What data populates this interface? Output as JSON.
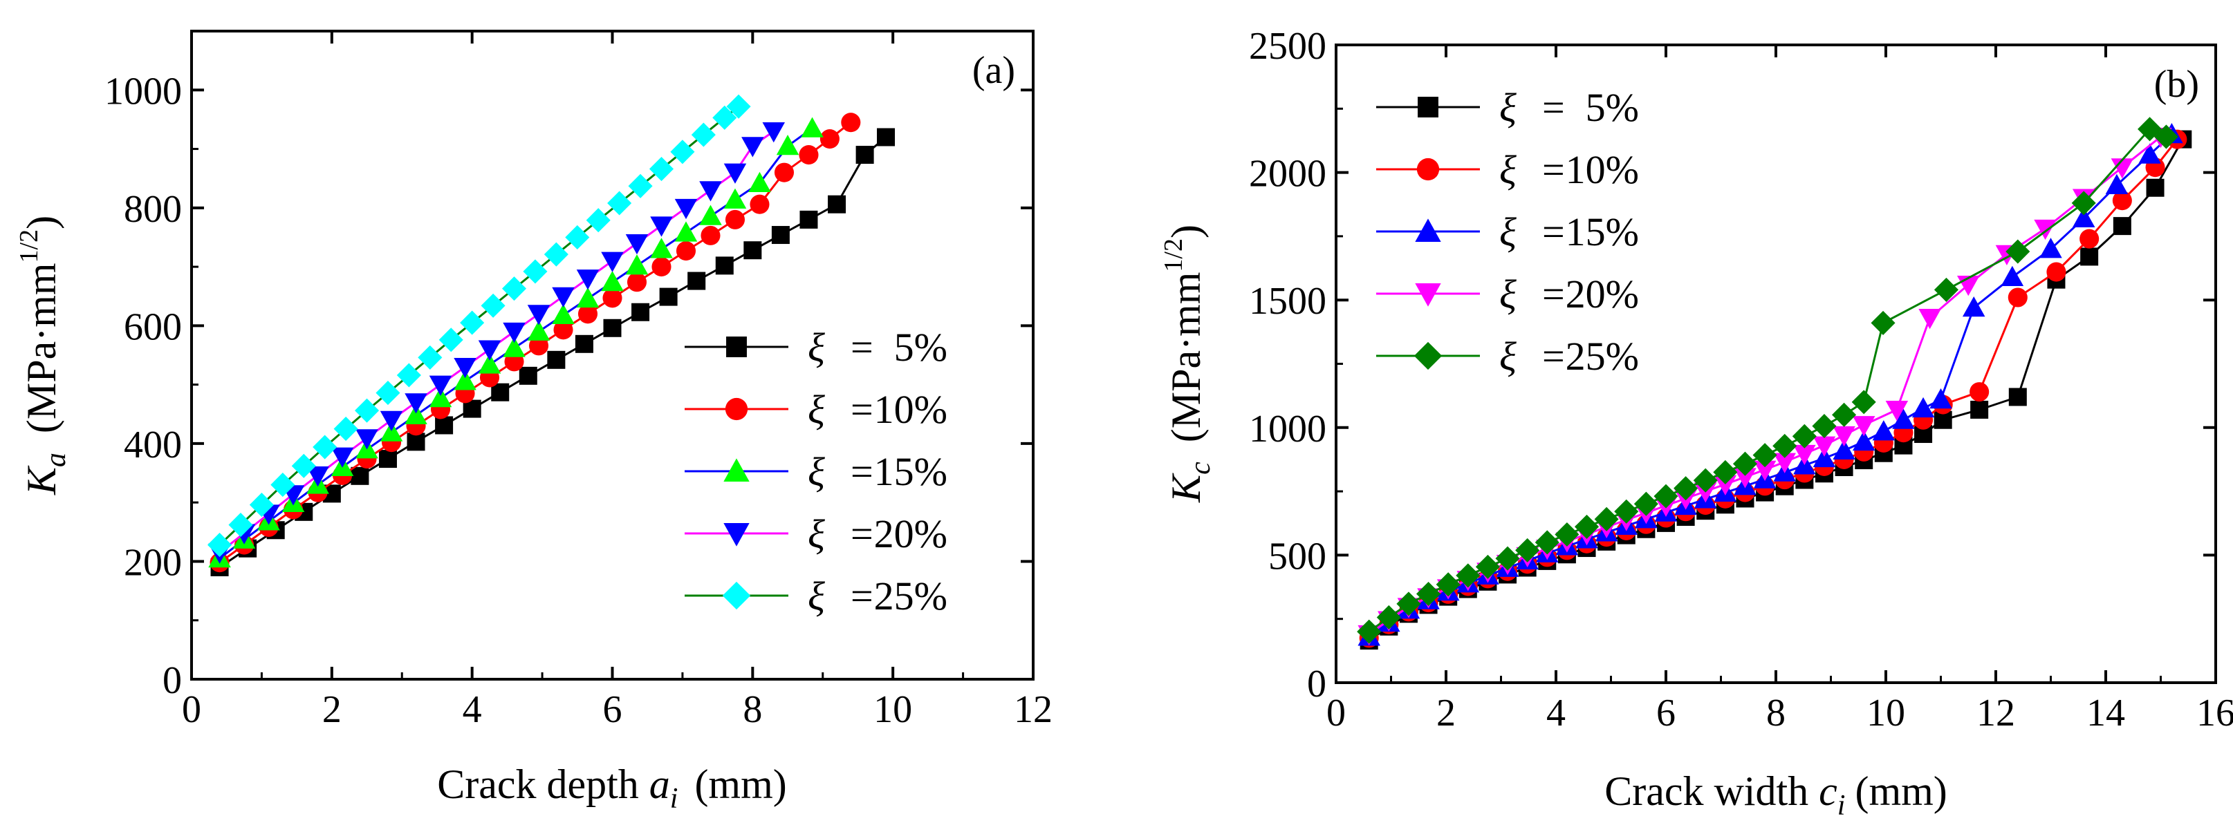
{
  "chart_data": [
    {
      "type": "line",
      "panel_label": "(a)",
      "xlabel": {
        "text": "Crack depth ",
        "var": "a",
        "sub": "i",
        "unit": "(mm)"
      },
      "ylabel": {
        "var": "K",
        "sub": "a",
        "unit": "(MPa·mm",
        "sup": "1/2",
        "close": ")"
      },
      "xlim": [
        0,
        12
      ],
      "ylim": [
        0,
        1100
      ],
      "xticks": [
        0,
        2,
        4,
        6,
        8,
        10,
        12
      ],
      "yticks": [
        0,
        200,
        400,
        600,
        800,
        1000
      ],
      "legend_position": "bottom-right",
      "series": [
        {
          "name": "ξ =  5%",
          "greek": "ξ",
          "pct": "5%",
          "marker": "square",
          "line_color": "#000000",
          "marker_color": "#000000",
          "x": [
            0.4,
            0.8,
            1.2,
            1.6,
            2.0,
            2.4,
            2.8,
            3.2,
            3.6,
            4.0,
            4.4,
            4.8,
            5.2,
            5.6,
            6.0,
            6.4,
            6.8,
            7.2,
            7.6,
            8.0,
            8.4,
            8.8,
            9.2,
            9.6,
            9.9
          ],
          "y": [
            190,
            222,
            253,
            284,
            315,
            345,
            374,
            403,
            431,
            459,
            487,
            515,
            542,
            569,
            596,
            623,
            649,
            676,
            702,
            728,
            754,
            780,
            806,
            890,
            920
          ]
        },
        {
          "name": "ξ =  10%",
          "greek": "ξ",
          "pct": "10%",
          "marker": "circle",
          "line_color": "#ff0000",
          "marker_color": "#ff0000",
          "x": [
            0.4,
            0.75,
            1.1,
            1.45,
            1.8,
            2.15,
            2.5,
            2.85,
            3.2,
            3.55,
            3.9,
            4.25,
            4.6,
            4.95,
            5.3,
            5.65,
            6.0,
            6.35,
            6.7,
            7.05,
            7.4,
            7.75,
            8.1,
            8.45,
            8.8,
            9.1,
            9.4
          ],
          "y": [
            198,
            228,
            258,
            288,
            317,
            346,
            374,
            402,
            430,
            458,
            485,
            512,
            539,
            566,
            593,
            620,
            647,
            674,
            700,
            727,
            753,
            780,
            806,
            860,
            890,
            917,
            945
          ]
        },
        {
          "name": "ξ =  15%",
          "greek": "ξ",
          "pct": "15%",
          "marker": "triangle-up",
          "line_color": "#0000ff",
          "marker_color": "#00ff00",
          "x": [
            0.4,
            0.75,
            1.1,
            1.45,
            1.8,
            2.15,
            2.5,
            2.85,
            3.2,
            3.55,
            3.9,
            4.25,
            4.6,
            4.95,
            5.3,
            5.65,
            6.0,
            6.35,
            6.7,
            7.05,
            7.4,
            7.75,
            8.1,
            8.5,
            8.85
          ],
          "y": [
            205,
            237,
            268,
            299,
            330,
            360,
            390,
            419,
            448,
            477,
            506,
            534,
            562,
            590,
            618,
            646,
            674,
            702,
            730,
            758,
            786,
            814,
            842,
            905,
            935
          ]
        },
        {
          "name": "ξ =  20%",
          "greek": "ξ",
          "pct": "20%",
          "marker": "triangle-down",
          "line_color": "#ff00ff",
          "marker_color": "#0000ff",
          "x": [
            0.4,
            0.75,
            1.1,
            1.45,
            1.8,
            2.15,
            2.5,
            2.85,
            3.2,
            3.55,
            3.9,
            4.25,
            4.6,
            4.95,
            5.3,
            5.65,
            6.0,
            6.35,
            6.7,
            7.05,
            7.4,
            7.75,
            8.0,
            8.3
          ],
          "y": [
            215,
            248,
            281,
            314,
            346,
            378,
            409,
            440,
            470,
            500,
            530,
            560,
            590,
            620,
            650,
            680,
            710,
            740,
            770,
            800,
            830,
            860,
            905,
            930
          ]
        },
        {
          "name": "ξ =  25%",
          "greek": "ξ",
          "pct": "25%",
          "marker": "diamond",
          "line_color": "#008000",
          "marker_color": "#00ffff",
          "x": [
            0.4,
            0.7,
            1.0,
            1.3,
            1.6,
            1.9,
            2.2,
            2.5,
            2.8,
            3.1,
            3.4,
            3.7,
            4.0,
            4.3,
            4.6,
            4.9,
            5.2,
            5.5,
            5.8,
            6.1,
            6.4,
            6.7,
            7.0,
            7.3,
            7.6,
            7.8
          ],
          "y": [
            228,
            262,
            296,
            330,
            362,
            394,
            425,
            456,
            486,
            516,
            546,
            576,
            605,
            634,
            663,
            692,
            721,
            750,
            779,
            808,
            837,
            866,
            895,
            924,
            953,
            972
          ]
        }
      ]
    },
    {
      "type": "line",
      "panel_label": "(b)",
      "xlabel": {
        "text": "Crack width ",
        "var": "c",
        "sub": "i",
        "unit": "(mm)"
      },
      "ylabel": {
        "var": "K",
        "sub": "c",
        "unit": "(MPa·mm",
        "sup": "1/2",
        "close": ")"
      },
      "xlim": [
        0,
        16
      ],
      "ylim": [
        0,
        2500
      ],
      "xticks": [
        0,
        2,
        4,
        6,
        8,
        10,
        12,
        14,
        16
      ],
      "yticks": [
        0,
        500,
        1000,
        1500,
        2000,
        2500
      ],
      "legend_position": "top-left",
      "series": [
        {
          "name": "ξ =  5%",
          "greek": "ξ",
          "pct": "5%",
          "marker": "square",
          "line_color": "#000000",
          "marker_color": "#000000",
          "x": [
            0.6,
            0.96,
            1.32,
            1.68,
            2.04,
            2.4,
            2.76,
            3.12,
            3.48,
            3.84,
            4.2,
            4.56,
            4.92,
            5.28,
            5.64,
            6.0,
            6.36,
            6.72,
            7.08,
            7.44,
            7.8,
            8.16,
            8.52,
            8.88,
            9.24,
            9.6,
            9.96,
            10.32,
            10.68,
            11.04,
            11.7,
            12.4,
            13.1,
            13.7,
            14.3,
            14.9,
            15.4
          ],
          "y": [
            165,
            220,
            270,
            305,
            337,
            367,
            396,
            424,
            451,
            477,
            503,
            528,
            553,
            578,
            602,
            626,
            650,
            674,
            698,
            722,
            746,
            770,
            795,
            820,
            845,
            872,
            900,
            930,
            975,
            1030,
            1070,
            1120,
            1580,
            1670,
            1790,
            1940,
            2130
          ]
        },
        {
          "name": "ξ =  10%",
          "greek": "ξ",
          "pct": "10%",
          "marker": "circle",
          "line_color": "#ff0000",
          "marker_color": "#ff0000",
          "x": [
            0.6,
            0.96,
            1.32,
            1.68,
            2.04,
            2.4,
            2.76,
            3.12,
            3.48,
            3.84,
            4.2,
            4.56,
            4.92,
            5.28,
            5.64,
            6.0,
            6.36,
            6.72,
            7.08,
            7.44,
            7.8,
            8.16,
            8.52,
            8.88,
            9.24,
            9.6,
            9.96,
            10.32,
            10.68,
            11.04,
            11.7,
            12.4,
            13.1,
            13.7,
            14.3,
            14.9,
            15.3
          ],
          "y": [
            175,
            228,
            278,
            314,
            347,
            378,
            408,
            437,
            465,
            492,
            519,
            545,
            571,
            596,
            621,
            646,
            671,
            696,
            721,
            746,
            771,
            796,
            822,
            848,
            875,
            905,
            940,
            980,
            1030,
            1090,
            1140,
            1510,
            1610,
            1740,
            1890,
            2020,
            2130
          ]
        },
        {
          "name": "ξ =  15%",
          "greek": "ξ",
          "pct": "15%",
          "marker": "triangle-up",
          "line_color": "#0000ff",
          "marker_color": "#0000ff",
          "x": [
            0.6,
            0.96,
            1.32,
            1.68,
            2.04,
            2.4,
            2.76,
            3.12,
            3.48,
            3.84,
            4.2,
            4.56,
            4.92,
            5.28,
            5.64,
            6.0,
            6.36,
            6.72,
            7.08,
            7.44,
            7.8,
            8.16,
            8.52,
            8.88,
            9.24,
            9.6,
            9.96,
            10.32,
            10.68,
            11.0,
            11.6,
            12.3,
            13.0,
            13.6,
            14.2,
            14.8,
            15.2
          ],
          "y": [
            180,
            235,
            286,
            323,
            357,
            389,
            420,
            450,
            479,
            507,
            535,
            562,
            589,
            615,
            641,
            667,
            693,
            719,
            745,
            771,
            797,
            824,
            852,
            880,
            910,
            945,
            985,
            1030,
            1075,
            1110,
            1470,
            1590,
            1700,
            1820,
            1950,
            2070,
            2150
          ]
        },
        {
          "name": "ξ =  20%",
          "greek": "ξ",
          "pct": "20%",
          "marker": "triangle-down",
          "line_color": "#ff00ff",
          "marker_color": "#ff00ff",
          "x": [
            0.6,
            0.96,
            1.32,
            1.68,
            2.04,
            2.4,
            2.76,
            3.12,
            3.48,
            3.84,
            4.2,
            4.56,
            4.92,
            5.28,
            5.64,
            6.0,
            6.36,
            6.72,
            7.08,
            7.44,
            7.8,
            8.16,
            8.52,
            8.88,
            9.24,
            9.6,
            10.2,
            10.8,
            11.5,
            12.2,
            12.9,
            13.6,
            14.3,
            15.0
          ],
          "y": [
            190,
            245,
            297,
            335,
            370,
            403,
            435,
            466,
            496,
            525,
            554,
            582,
            610,
            638,
            666,
            694,
            722,
            750,
            778,
            806,
            835,
            865,
            897,
            930,
            970,
            1010,
            1070,
            1430,
            1560,
            1680,
            1780,
            1900,
            2020,
            2140
          ]
        },
        {
          "name": "ξ =  25%",
          "greek": "ξ",
          "pct": "25%",
          "marker": "diamond",
          "line_color": "#008000",
          "marker_color": "#008000",
          "x": [
            0.6,
            0.96,
            1.32,
            1.68,
            2.04,
            2.4,
            2.76,
            3.12,
            3.48,
            3.84,
            4.2,
            4.56,
            4.92,
            5.28,
            5.64,
            6.0,
            6.36,
            6.72,
            7.08,
            7.44,
            7.8,
            8.16,
            8.52,
            8.88,
            9.24,
            9.6,
            9.95,
            11.1,
            12.4,
            13.6,
            14.8,
            15.1
          ],
          "y": [
            200,
            256,
            309,
            348,
            385,
            420,
            454,
            487,
            519,
            550,
            581,
            611,
            641,
            671,
            701,
            731,
            762,
            793,
            825,
            858,
            892,
            928,
            966,
            1006,
            1050,
            1100,
            1410,
            1540,
            1690,
            1880,
            2170,
            2140
          ]
        }
      ]
    }
  ]
}
